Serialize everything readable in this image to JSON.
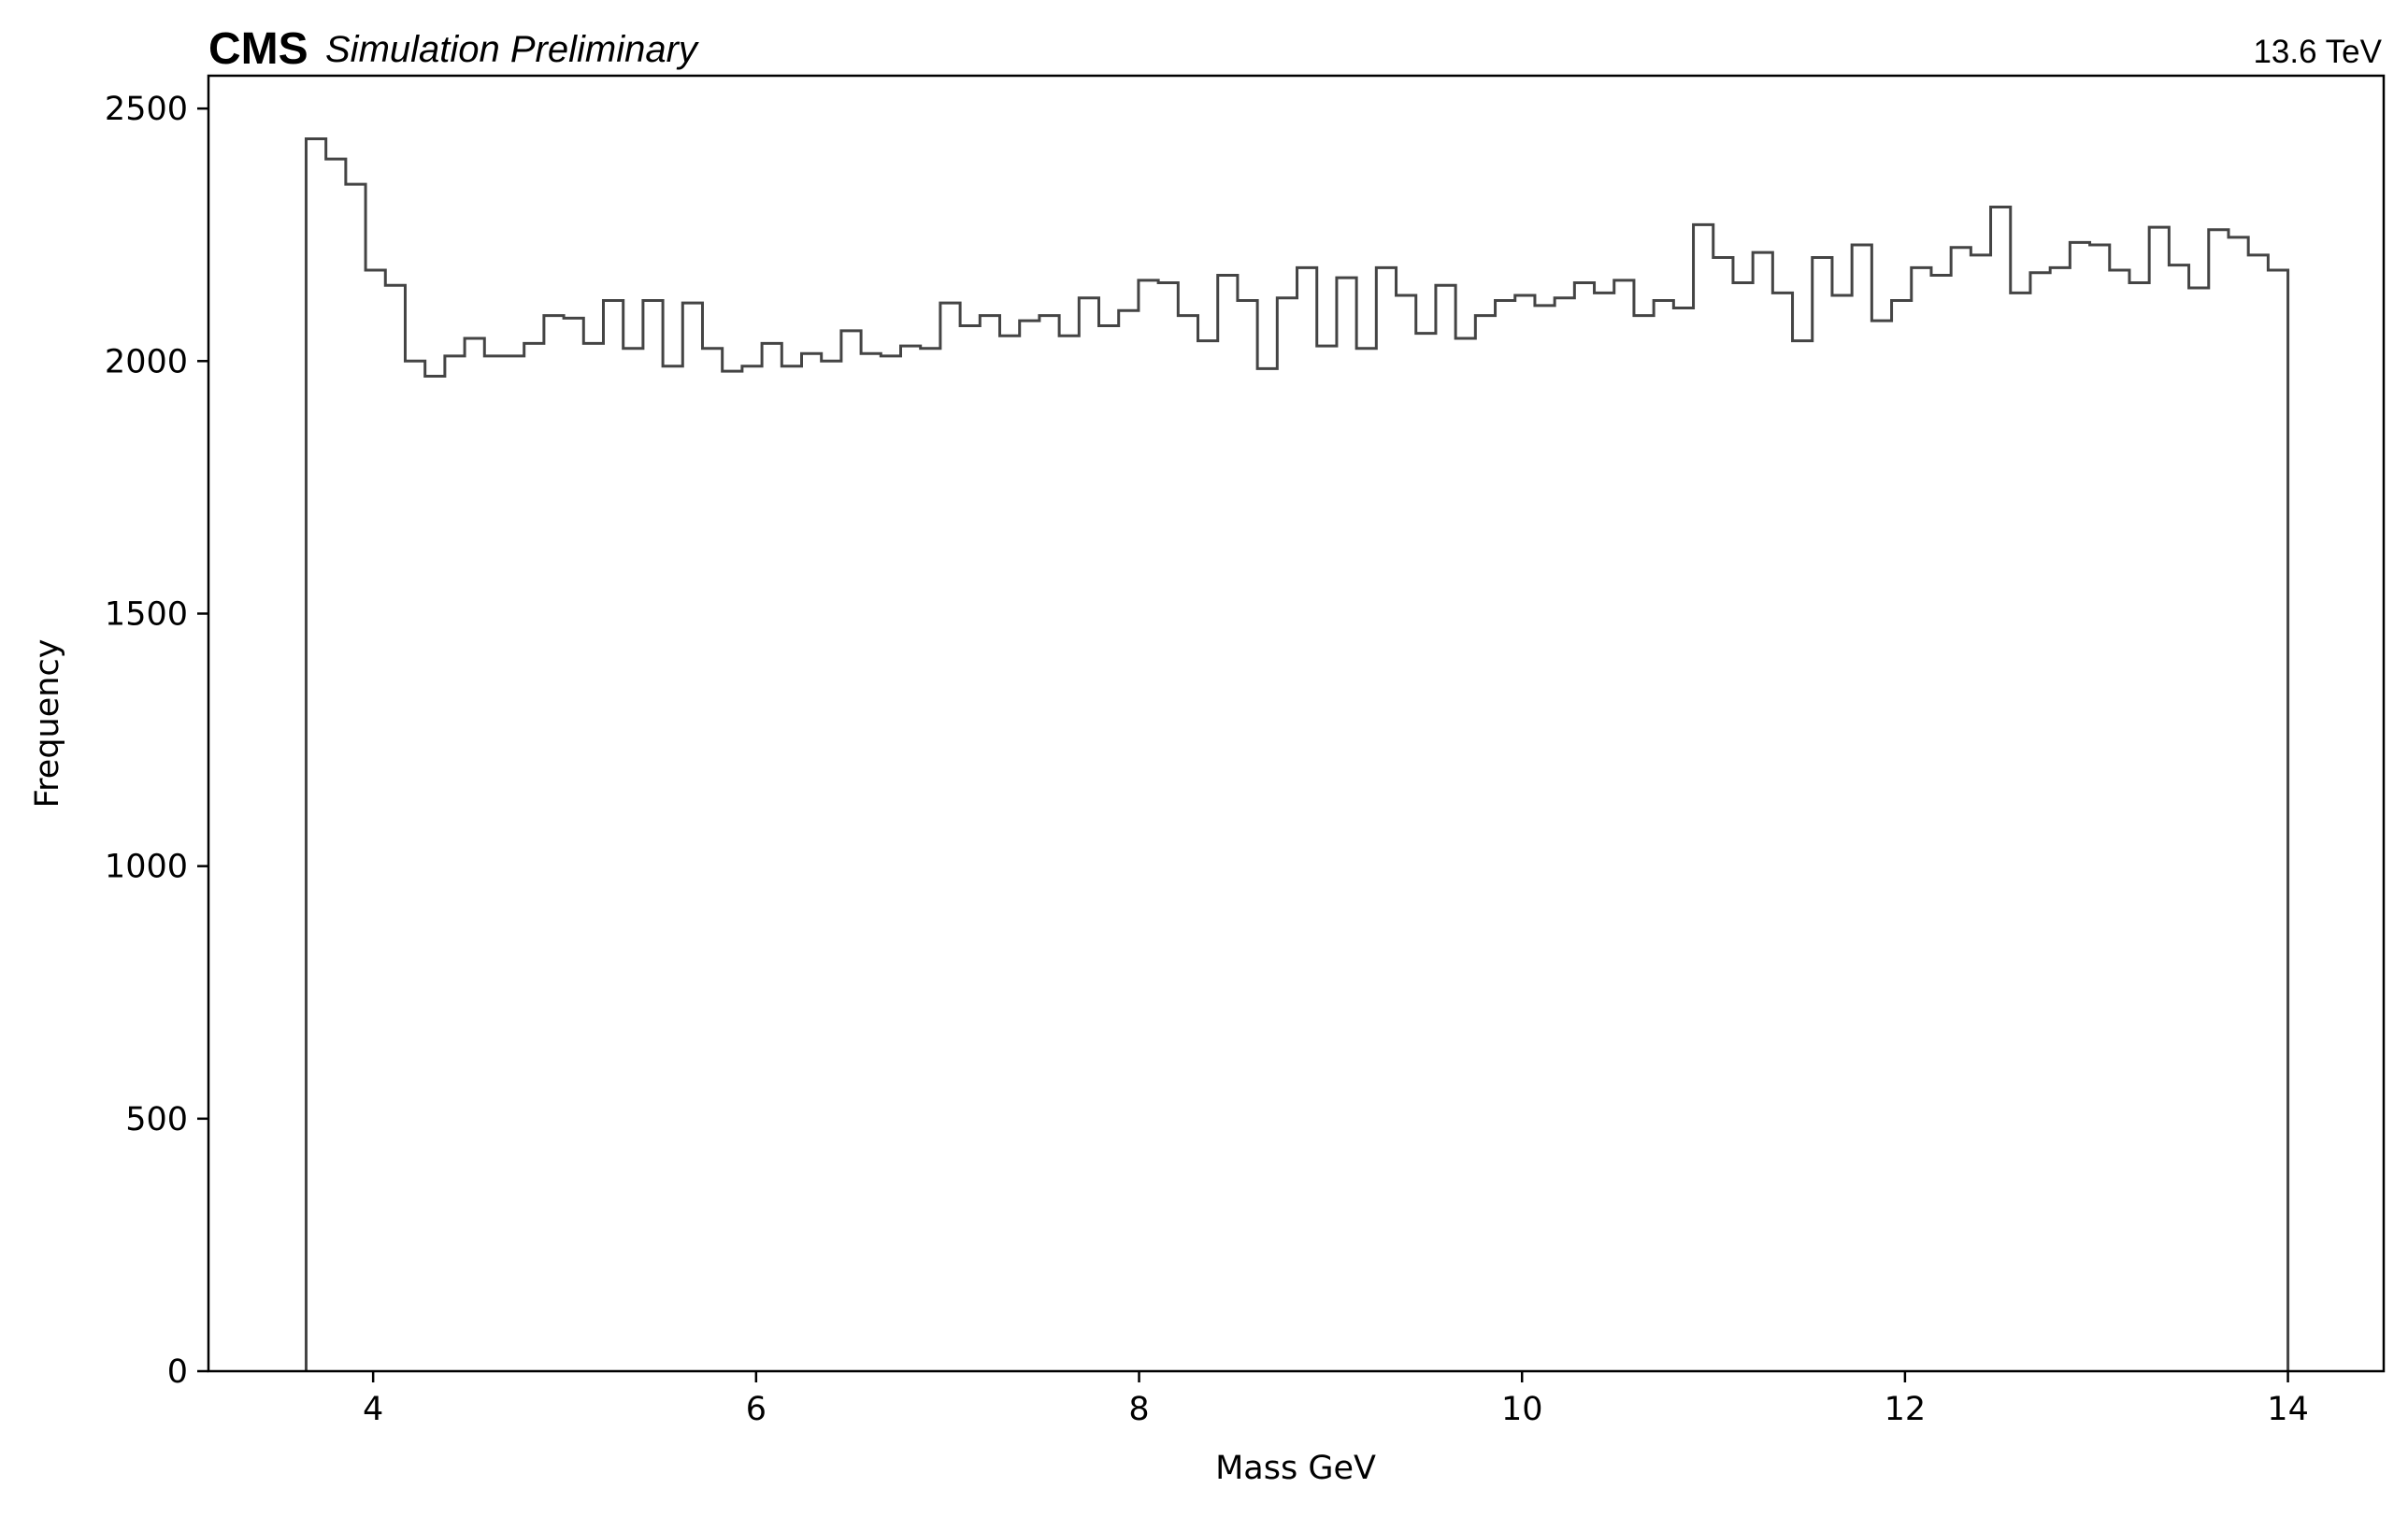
{
  "header": {
    "experiment": "CMS",
    "status": "Simulation Preliminary",
    "energy": "13.6 TeV"
  },
  "chart_data": {
    "type": "histogram",
    "title": "",
    "xlabel": "Mass GeV",
    "ylabel": "Frequency",
    "xlim": [
      3.14,
      14.5
    ],
    "ylim": [
      0,
      2565
    ],
    "xticks": [
      4,
      6,
      8,
      10,
      12,
      14
    ],
    "yticks": [
      0,
      500,
      1000,
      1500,
      2000,
      2500
    ],
    "xtick_labels": [
      "4",
      "6",
      "8",
      "10",
      "12",
      14
    ],
    "ytick_labels": [
      "0",
      "500",
      "1000",
      "1500",
      "2000",
      "2500"
    ],
    "histtype": "step",
    "color": "#444444",
    "grid": false,
    "bin_edges_range": [
      3.65,
      14.0
    ],
    "counts": [
      2440,
      2400,
      2350,
      2180,
      2150,
      2000,
      1970,
      2010,
      2045,
      2010,
      2010,
      2035,
      2090,
      2085,
      2035,
      2120,
      2025,
      2120,
      1990,
      2115,
      2025,
      1980,
      1990,
      2035,
      1990,
      2015,
      2000,
      2060,
      2015,
      2010,
      2030,
      2025,
      2115,
      2070,
      2090,
      2050,
      2080,
      2090,
      2050,
      2125,
      2070,
      2100,
      2160,
      2155,
      2090,
      2040,
      2170,
      2120,
      1985,
      2125,
      2185,
      2030,
      2165,
      2025,
      2185,
      2130,
      2055,
      2150,
      2045,
      2090,
      2120,
      2130,
      2110,
      2125,
      2155,
      2135,
      2160,
      2090,
      2120,
      2105,
      2270,
      2205,
      2155,
      2215,
      2135,
      2040,
      2205,
      2130,
      2230,
      2080,
      2120,
      2185,
      2170,
      2225,
      2210,
      2305,
      2135,
      2175,
      2185,
      2235,
      2230,
      2180,
      2155,
      2265,
      2190,
      2145,
      2260,
      2245,
      2210,
      2180
    ]
  }
}
